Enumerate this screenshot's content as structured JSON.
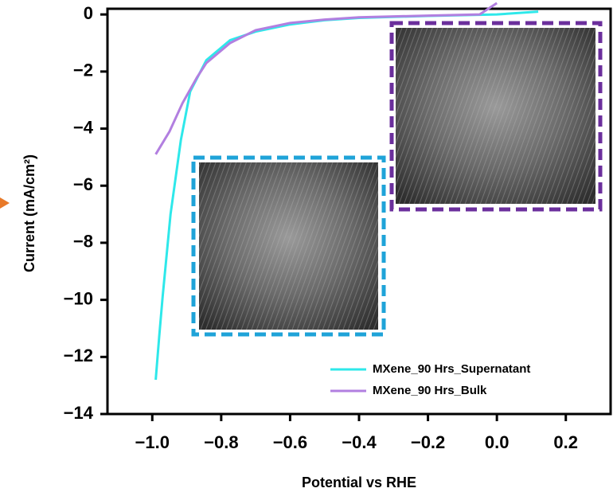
{
  "chart_data": {
    "type": "line",
    "xlabel": "Potential vs RHE",
    "ylabel": "Current (mA/cm²)",
    "xlim": [
      -1.13,
      0.33
    ],
    "ylim": [
      -14,
      0.2
    ],
    "xticks": [
      {
        "value": -1.0,
        "label": "−1.0"
      },
      {
        "value": -0.8,
        "label": "−0.8"
      },
      {
        "value": -0.6,
        "label": "−0.6"
      },
      {
        "value": -0.4,
        "label": "−0.4"
      },
      {
        "value": -0.2,
        "label": "−0.2"
      },
      {
        "value": 0.0,
        "label": "0.0"
      },
      {
        "value": 0.2,
        "label": "0.2"
      }
    ],
    "yticks": [
      {
        "value": 0,
        "label": "0"
      },
      {
        "value": -2,
        "label": "−2"
      },
      {
        "value": -4,
        "label": "−4"
      },
      {
        "value": -6,
        "label": "−6"
      },
      {
        "value": -8,
        "label": "−8"
      },
      {
        "value": -10,
        "label": "−10"
      },
      {
        "value": -12,
        "label": "−12"
      },
      {
        "value": -14,
        "label": "−14"
      }
    ],
    "legend": "lower right",
    "series": [
      {
        "name": "MXene_90 Hrs_Supernatant",
        "color": "#2ee8ea",
        "x": [
          -0.99,
          -0.98,
          -0.97,
          -0.947,
          -0.917,
          -0.89,
          -0.843,
          -0.774,
          -0.7,
          -0.6,
          -0.5,
          -0.4,
          -0.2,
          0.0,
          0.12
        ],
        "values": [
          -12.8,
          -11.3,
          -9.9,
          -7.0,
          -4.4,
          -2.7,
          -1.6,
          -0.9,
          -0.6,
          -0.35,
          -0.2,
          -0.12,
          -0.05,
          0.0,
          0.1
        ]
      },
      {
        "name": "MXene_90 Hrs_Bulk",
        "color": "#b27fe0",
        "x": [
          -0.99,
          -0.95,
          -0.912,
          -0.87,
          -0.843,
          -0.774,
          -0.7,
          -0.6,
          -0.5,
          -0.4,
          -0.2,
          -0.05,
          0.0
        ],
        "values": [
          -4.9,
          -4.1,
          -3.1,
          -2.2,
          -1.7,
          -1.0,
          -0.55,
          -0.3,
          -0.18,
          -0.1,
          -0.04,
          0.0,
          0.4
        ]
      }
    ]
  }
}
